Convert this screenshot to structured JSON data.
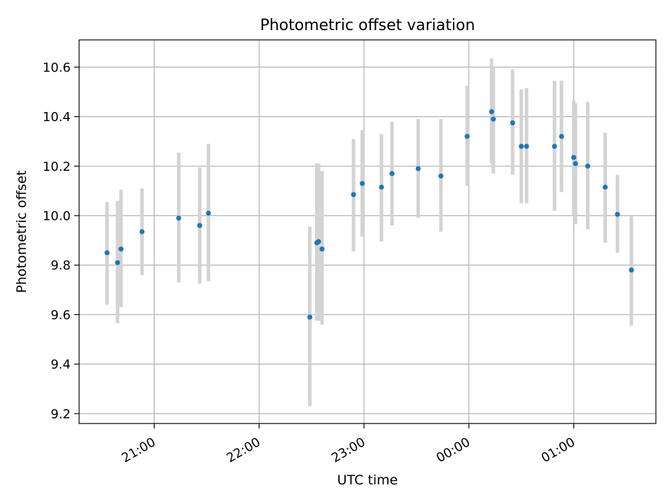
{
  "chart_data": {
    "type": "scatter",
    "title": "Photometric offset variation",
    "xlabel": "UTC time",
    "ylabel": "Photometric offset",
    "x_type": "time",
    "xlim": [
      "20:17",
      "01:47"
    ],
    "ylim": [
      9.16,
      10.71
    ],
    "xticks": [
      "21:00",
      "22:00",
      "23:00",
      "00:00",
      "01:00"
    ],
    "yticks": [
      9.2,
      9.4,
      9.6,
      9.8,
      10.0,
      10.2,
      10.4,
      10.6
    ],
    "grid": true,
    "marker_color": "#1f77b4",
    "errorbar_color": "#d3d3d3",
    "series": [
      {
        "x": [
          "20:33",
          "20:39",
          "20:41",
          "20:53",
          "21:14",
          "21:26",
          "21:31",
          "22:29",
          "22:33",
          "22:34",
          "22:36",
          "22:54",
          "22:59",
          "23:10",
          "23:16",
          "23:31",
          "23:44",
          "23:59",
          "00:13",
          "00:14",
          "00:25",
          "00:30",
          "00:33",
          "00:49",
          "00:53",
          "01:00",
          "01:01",
          "01:08",
          "01:18",
          "01:25",
          "01:33"
        ],
        "y": [
          9.85,
          9.81,
          9.865,
          9.935,
          9.99,
          9.96,
          10.01,
          9.59,
          9.89,
          9.895,
          9.865,
          10.085,
          10.13,
          10.115,
          10.17,
          10.19,
          10.16,
          10.32,
          10.42,
          10.39,
          10.375,
          10.28,
          10.28,
          10.28,
          10.32,
          10.235,
          10.21,
          10.2,
          10.115,
          10.005,
          9.78
        ],
        "y_low": [
          9.64,
          9.565,
          9.63,
          9.76,
          9.73,
          9.725,
          9.735,
          9.23,
          9.575,
          9.575,
          9.56,
          9.855,
          9.915,
          9.895,
          9.96,
          9.99,
          9.935,
          10.12,
          10.21,
          10.17,
          10.165,
          10.05,
          10.05,
          10.02,
          10.095,
          10.005,
          9.965,
          9.945,
          9.89,
          9.85,
          9.555
        ],
        "y_high": [
          10.055,
          10.06,
          10.105,
          10.11,
          10.255,
          10.195,
          10.29,
          9.955,
          10.21,
          10.21,
          10.18,
          10.31,
          10.345,
          10.33,
          10.38,
          10.39,
          10.39,
          10.525,
          10.635,
          10.6,
          10.59,
          10.51,
          10.515,
          10.545,
          10.545,
          10.465,
          10.455,
          10.46,
          10.335,
          10.165,
          10.0
        ]
      }
    ]
  }
}
